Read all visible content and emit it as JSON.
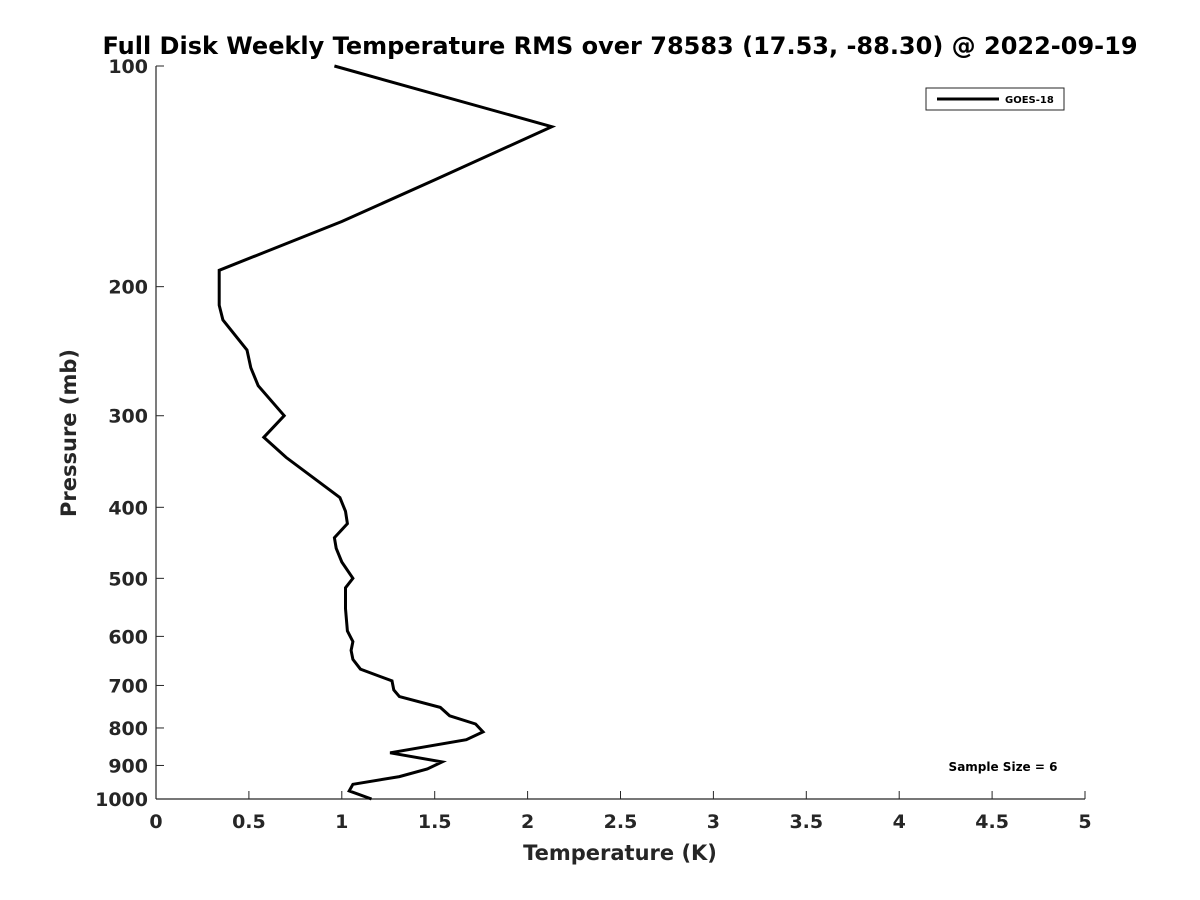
{
  "chart_data": {
    "type": "line",
    "title": "Full Disk Weekly Temperature RMS over 78583 (17.53, -88.30) @ 2022-09-19",
    "xlabel": "Temperature (K)",
    "ylabel": "Pressure (mb)",
    "xlim": [
      0,
      5
    ],
    "ylim": [
      100,
      1000
    ],
    "y_scale": "log",
    "y_reversed": true,
    "x_ticks": [
      "0",
      "0.5",
      "1",
      "1.5",
      "2",
      "2.5",
      "3",
      "3.5",
      "4",
      "4.5",
      "5"
    ],
    "y_ticks": [
      100,
      200,
      300,
      400,
      500,
      600,
      700,
      800,
      900,
      1000
    ],
    "grid": false,
    "legend_position": "top-right",
    "annotation": "Sample Size = 6",
    "series": [
      {
        "name": "GOES-18",
        "color": "#000000",
        "x": [
          0.96,
          2.13,
          1.5,
          1.0,
          0.34,
          0.34,
          0.34,
          0.36,
          0.49,
          0.51,
          0.55,
          0.69,
          0.58,
          0.7,
          0.99,
          1.02,
          1.03,
          0.96,
          0.97,
          1.0,
          1.06,
          1.02,
          1.02,
          1.03,
          1.06,
          1.05,
          1.06,
          1.1,
          1.27,
          1.28,
          1.31,
          1.53,
          1.58,
          1.72,
          1.76,
          1.67,
          1.26,
          1.54,
          1.46,
          1.31,
          1.06,
          1.04,
          1.16
        ],
        "y": [
          100,
          121,
          143,
          163,
          190,
          200,
          212,
          222,
          244,
          258,
          273,
          300,
          321,
          342,
          388,
          405,
          421,
          440,
          455,
          475,
          500,
          515,
          550,
          590,
          610,
          627,
          645,
          665,
          690,
          710,
          725,
          750,
          770,
          790,
          810,
          830,
          865,
          890,
          910,
          932,
          955,
          975,
          1000
        ]
      }
    ]
  }
}
